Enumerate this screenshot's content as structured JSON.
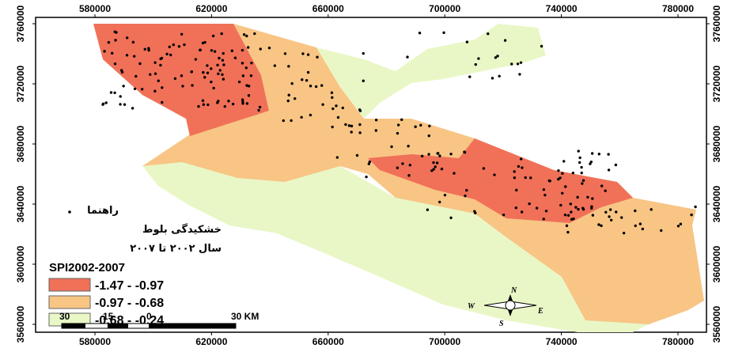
{
  "map_frame": {
    "xlim": [
      559650,
      789770
    ],
    "ylim": [
      3560000,
      3760000
    ],
    "xticks": [
      580000,
      620000,
      660000,
      700000,
      740000,
      780000
    ],
    "yticks": [
      3560000,
      3600000,
      3640000,
      3680000,
      3720000,
      3760000
    ]
  },
  "legend": {
    "title": "راهنما",
    "point_label": "خشکیدگی بلوط",
    "period": "سال ۲۰۰۲ تا ۲۰۰۷",
    "index_title": "SPI2002-2007",
    "classes": [
      {
        "label": "-1.47 - -0.97",
        "color": "#f07158"
      },
      {
        "label": "-0.97 - -0.68",
        "color": "#f8c585"
      },
      {
        "label": "-0.68 - -0.24",
        "color": "#e9f7c6"
      }
    ]
  },
  "scale_bar": {
    "labels": [
      "30",
      "15",
      "0",
      "30 KM"
    ]
  },
  "north_arrow": {
    "n": "N",
    "s": "S",
    "e": "E",
    "w": "W"
  }
}
